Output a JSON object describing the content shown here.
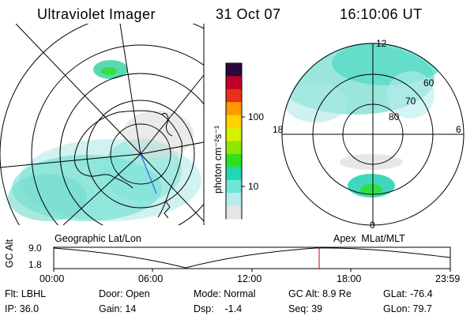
{
  "header": {
    "instrument": "Ultraviolet Imager",
    "date": "31 Oct 07",
    "time": "16:10:06 UT"
  },
  "left_panel": {
    "label": "Geographic Lat/Lon"
  },
  "right_panel": {
    "label": "Apex  MLat/MLT",
    "mlt_labels": [
      "12",
      "18",
      "6",
      "0"
    ],
    "lat_labels": [
      "60",
      "70",
      "80"
    ]
  },
  "colorbar": {
    "unit_label": "photon cm⁻²s⁻¹",
    "ticks": [
      "100",
      "10"
    ],
    "scale": "log",
    "colors": [
      "#2a0a3a",
      "#c0002a",
      "#e8301a",
      "#ff9a00",
      "#ffd200",
      "#d8f000",
      "#8ce800",
      "#30e020",
      "#20d8b0",
      "#6fe6d4",
      "#b8ecec",
      "#e6e6e6"
    ]
  },
  "timeline": {
    "y_axis_label": "GC Alt",
    "y_ticks": [
      "9.0",
      "1.8"
    ],
    "x_ticks": [
      "00:00",
      "06:00",
      "12:00",
      "18:00",
      "23:59"
    ],
    "current_time_marker": "16:10:06",
    "marker_color": "#cc0000"
  },
  "status": {
    "row1": [
      {
        "label": "Flt:",
        "value": "LBHL"
      },
      {
        "label": "Door:",
        "value": "Open"
      },
      {
        "label": "Mode:",
        "value": "Normal"
      },
      {
        "label": "GC Alt:",
        "value": "8.9 Re"
      },
      {
        "label": "GLat:",
        "value": "-76.4"
      }
    ],
    "row2": [
      {
        "label": "IP:",
        "value": "36.0"
      },
      {
        "label": "Gain:",
        "value": "14"
      },
      {
        "label": "Dsp:",
        "value": "-1.4"
      },
      {
        "label": "Seq:",
        "value": "39"
      },
      {
        "label": "GLon:",
        "value": "79.7"
      }
    ]
  }
}
